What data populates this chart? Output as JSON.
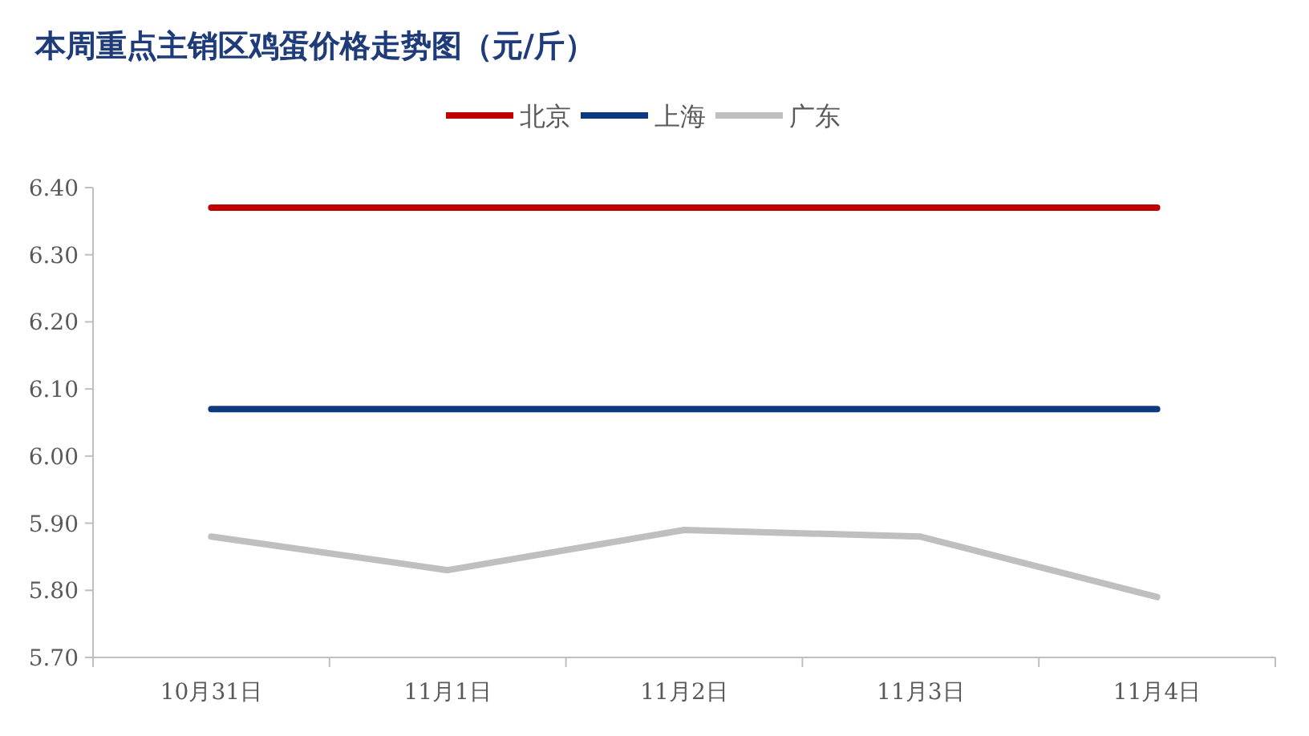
{
  "chart_data": {
    "type": "line",
    "title": "本周重点主销区鸡蛋价格走势图（元/斤）",
    "categories": [
      "10月31日",
      "11月1日",
      "11月2日",
      "11月3日",
      "11月4日"
    ],
    "series": [
      {
        "name": "北京",
        "color": "#c00000",
        "values": [
          6.37,
          6.37,
          6.37,
          6.37,
          6.37
        ]
      },
      {
        "name": "上海",
        "color": "#0d3a7e",
        "values": [
          6.07,
          6.07,
          6.07,
          6.07,
          6.07
        ]
      },
      {
        "name": "广东",
        "color": "#bfbfbf",
        "values": [
          5.88,
          5.83,
          5.89,
          5.88,
          5.79
        ]
      }
    ],
    "ylim": [
      5.7,
      6.4
    ],
    "yticks": [
      {
        "value": 5.7,
        "label": "5.70"
      },
      {
        "value": 5.8,
        "label": "5.80"
      },
      {
        "value": 5.9,
        "label": "5.90"
      },
      {
        "value": 6.0,
        "label": "6.00"
      },
      {
        "value": 6.1,
        "label": "6.10"
      },
      {
        "value": 6.2,
        "label": "6.20"
      },
      {
        "value": 6.3,
        "label": "6.30"
      },
      {
        "value": 6.4,
        "label": "6.40"
      }
    ],
    "legend": "top",
    "grid": false,
    "marker": "none",
    "line_style": "solid"
  }
}
